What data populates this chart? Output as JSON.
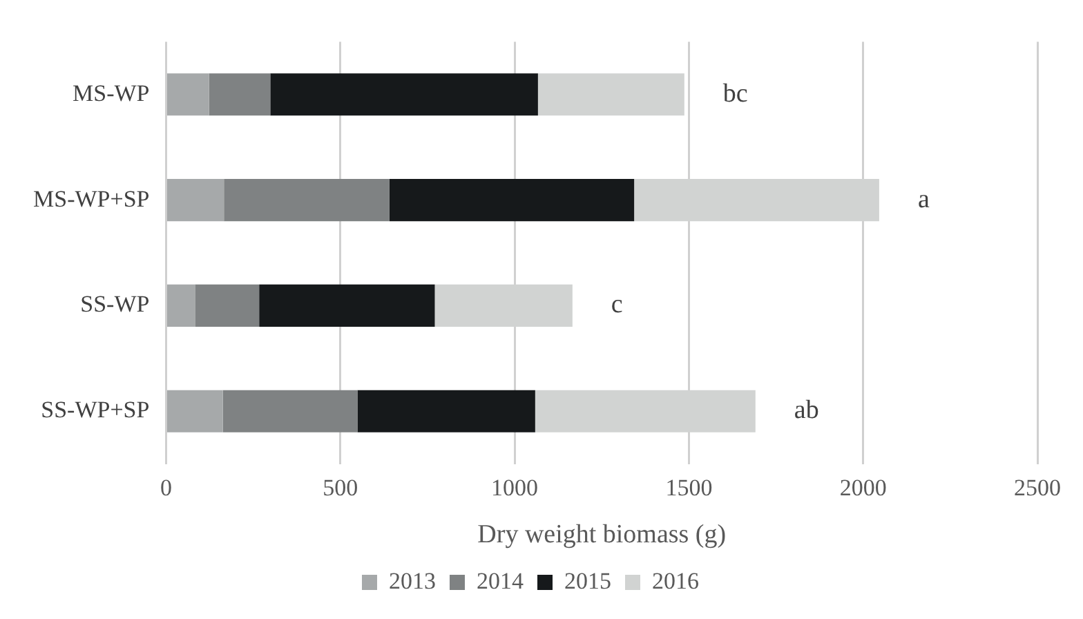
{
  "chart_data": {
    "type": "bar",
    "orientation": "horizontal",
    "stacked": true,
    "xlabel": "Dry weight biomass (g)",
    "categories": [
      "MS-WP",
      "MS-WP+SP",
      "SS-WP",
      "SS-WP+SP"
    ],
    "series": [
      {
        "name": "2013",
        "color": "#a6a9aa",
        "values": [
          123,
          166,
          83,
          163
        ]
      },
      {
        "name": "2014",
        "color": "#7f8283",
        "values": [
          176,
          475,
          184,
          386
        ]
      },
      {
        "name": "2015",
        "color": "#16191b",
        "values": [
          768,
          702,
          504,
          510
        ]
      },
      {
        "name": "2016",
        "color": "#d1d3d2",
        "values": [
          420,
          703,
          395,
          632
        ]
      }
    ],
    "xlim": [
      0,
      2500
    ],
    "xticks": [
      0,
      500,
      1000,
      1500,
      2000,
      2500
    ],
    "grid": "x",
    "legend": "bottom",
    "annotations": [
      {
        "text": "bc",
        "x": 1487,
        "y": "MS-WP"
      },
      {
        "text": "a",
        "x": 2046,
        "y": "MS-WP+SP"
      },
      {
        "text": "c",
        "x": 1166,
        "y": "SS-WP"
      },
      {
        "text": "ab",
        "x": 1691,
        "y": "SS-WP+SP"
      }
    ]
  }
}
